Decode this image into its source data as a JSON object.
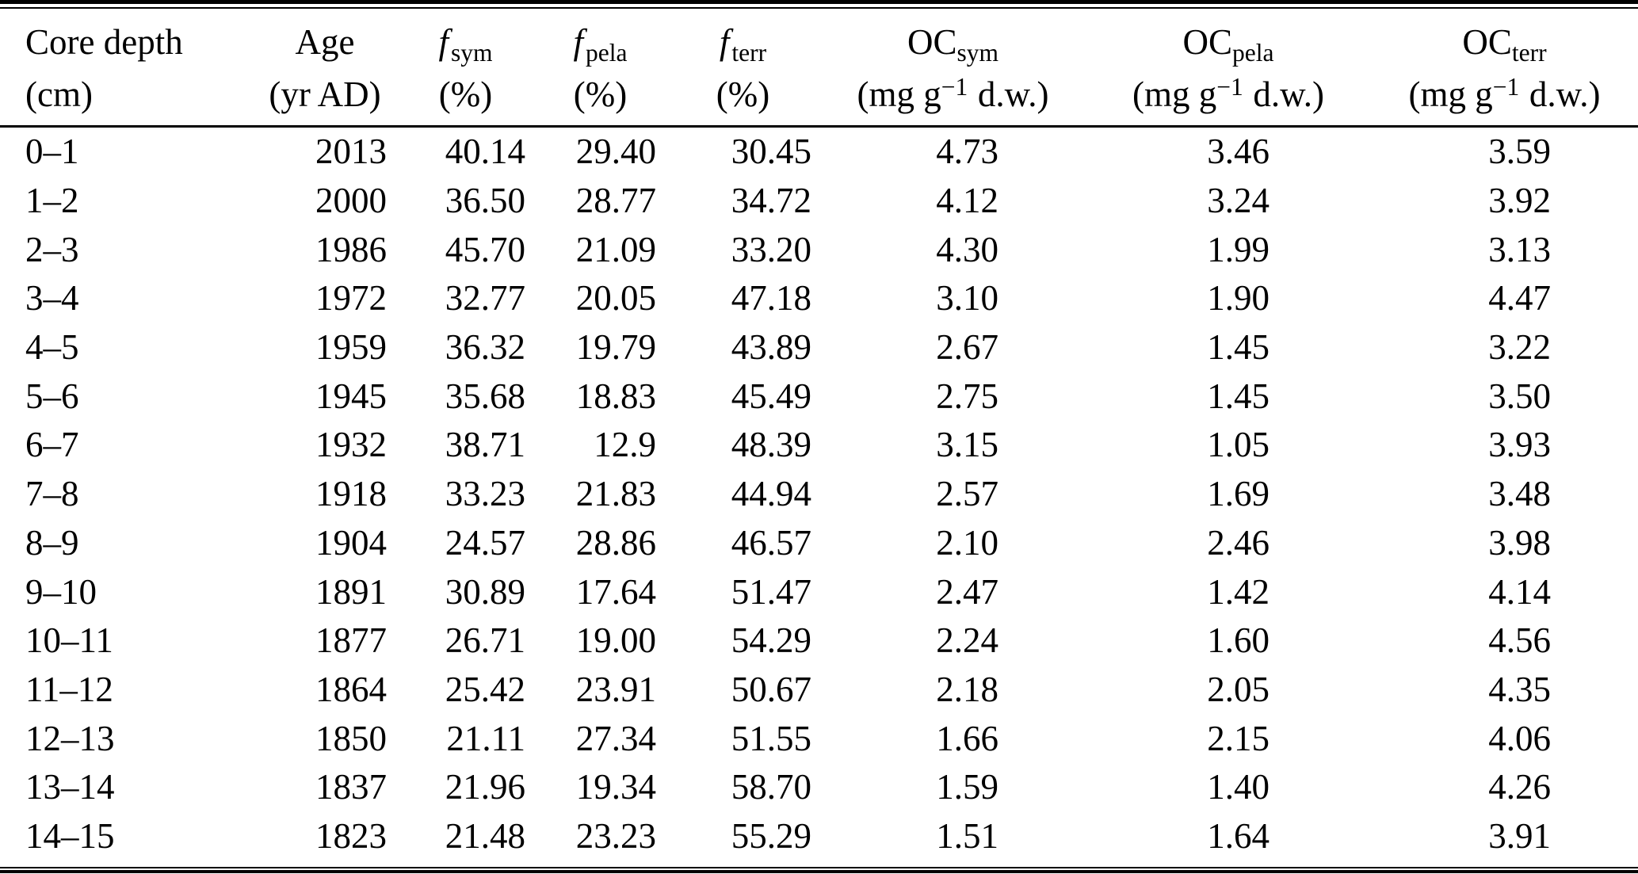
{
  "page": {
    "background_color": "#ffffff",
    "text_color": "#000000",
    "rule_color": "#000000"
  },
  "table": {
    "columns": [
      {
        "main": "Core depth",
        "unit": "(cm)"
      },
      {
        "main": "Age",
        "unit": "(yr AD)"
      },
      {
        "main": "f",
        "sub": "sym",
        "unit": "(%)"
      },
      {
        "main": "f",
        "sub": "pela",
        "unit": "(%)"
      },
      {
        "main": "f",
        "sub": "terr",
        "unit": "(%)"
      },
      {
        "main": "OC",
        "sub": "sym",
        "unit_pre": "(mg g",
        "unit_sup": "−1",
        "unit_post": "d.w.)"
      },
      {
        "main": "OC",
        "sub": "pela",
        "unit_pre": "(mg g",
        "unit_sup": "−1",
        "unit_post": "d.w.)"
      },
      {
        "main": "OC",
        "sub": "terr",
        "unit_pre": "(mg g",
        "unit_sup": "−1",
        "unit_post": "d.w.)"
      }
    ],
    "rows": [
      [
        "0–1",
        "2013",
        "40.14",
        "29.40",
        "30.45",
        "4.73",
        "3.46",
        "3.59"
      ],
      [
        "1–2",
        "2000",
        "36.50",
        "28.77",
        "34.72",
        "4.12",
        "3.24",
        "3.92"
      ],
      [
        "2–3",
        "1986",
        "45.70",
        "21.09",
        "33.20",
        "4.30",
        "1.99",
        "3.13"
      ],
      [
        "3–4",
        "1972",
        "32.77",
        "20.05",
        "47.18",
        "3.10",
        "1.90",
        "4.47"
      ],
      [
        "4–5",
        "1959",
        "36.32",
        "19.79",
        "43.89",
        "2.67",
        "1.45",
        "3.22"
      ],
      [
        "5–6",
        "1945",
        "35.68",
        "18.83",
        "45.49",
        "2.75",
        "1.45",
        "3.50"
      ],
      [
        "6–7",
        "1932",
        "38.71",
        "12.9",
        "48.39",
        "3.15",
        "1.05",
        "3.93"
      ],
      [
        "7–8",
        "1918",
        "33.23",
        "21.83",
        "44.94",
        "2.57",
        "1.69",
        "3.48"
      ],
      [
        "8–9",
        "1904",
        "24.57",
        "28.86",
        "46.57",
        "2.10",
        "2.46",
        "3.98"
      ],
      [
        "9–10",
        "1891",
        "30.89",
        "17.64",
        "51.47",
        "2.47",
        "1.42",
        "4.14"
      ],
      [
        "10–11",
        "1877",
        "26.71",
        "19.00",
        "54.29",
        "2.24",
        "1.60",
        "4.56"
      ],
      [
        "11–12",
        "1864",
        "25.42",
        "23.91",
        "50.67",
        "2.18",
        "2.05",
        "4.35"
      ],
      [
        "12–13",
        "1850",
        "21.11",
        "27.34",
        "51.55",
        "1.66",
        "2.15",
        "4.06"
      ],
      [
        "13–14",
        "1837",
        "21.96",
        "19.34",
        "58.70",
        "1.59",
        "1.40",
        "4.26"
      ],
      [
        "14–15",
        "1823",
        "21.48",
        "23.23",
        "55.29",
        "1.51",
        "1.64",
        "3.91"
      ]
    ]
  }
}
